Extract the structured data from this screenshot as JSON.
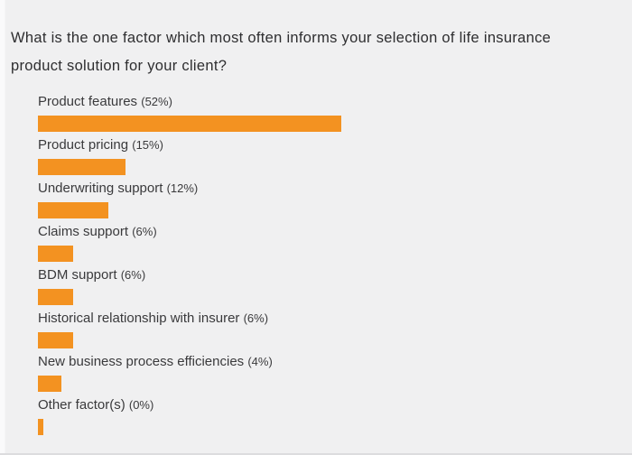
{
  "chart_data": {
    "type": "bar",
    "orientation": "horizontal",
    "title": "What is the one factor which most often informs your selection of life insurance product solution for your client?",
    "categories": [
      "Product features",
      "Product pricing",
      "Underwriting support",
      "Claims support",
      "BDM support",
      "Historical relationship with insurer",
      "New business process efficiencies",
      "Other factor(s)"
    ],
    "values": [
      52,
      15,
      12,
      6,
      6,
      6,
      4,
      0
    ],
    "items": [
      {
        "name": "Product features",
        "pct_label": "(52%)",
        "value": 52
      },
      {
        "name": "Product pricing",
        "pct_label": "(15%)",
        "value": 15
      },
      {
        "name": "Underwriting support",
        "pct_label": "(12%)",
        "value": 12
      },
      {
        "name": "Claims support",
        "pct_label": "(6%)",
        "value": 6
      },
      {
        "name": "BDM support",
        "pct_label": "(6%)",
        "value": 6
      },
      {
        "name": "Historical relationship with insurer",
        "pct_label": "(6%)",
        "value": 6
      },
      {
        "name": "New business process efficiencies",
        "pct_label": "(4%)",
        "value": 4
      },
      {
        "name": "Other factor(s)",
        "pct_label": "(0%)",
        "value": 0
      }
    ],
    "bar_color": "#F39221",
    "background_color": "#F0F0F1",
    "xlim": [
      0,
      100
    ],
    "grid": false,
    "legend": "none",
    "value_labels": "inline-with-category"
  }
}
